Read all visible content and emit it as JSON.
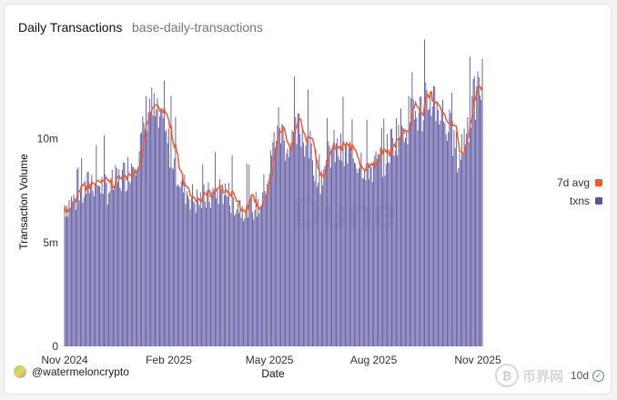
{
  "header": {
    "title": "Daily Transactions",
    "subtitle": "base-daily-transactions"
  },
  "footer": {
    "author": "@watermeloncrypto",
    "refresh": "10d",
    "watermark": "币界网"
  },
  "colors": {
    "bars": "#5b55a0",
    "avg_line": "#ef5a2e",
    "watermark": "#e4e4e4"
  },
  "chart_data": {
    "type": "bar",
    "title": "Daily Transactions",
    "xlabel": "Date",
    "ylabel": "Transaction Volume",
    "ylim": [
      0,
      14500000
    ],
    "yticks": [
      0,
      5000000,
      10000000
    ],
    "ytick_labels": [
      "0",
      "5m",
      "10m"
    ],
    "x_start": "2024-11-01",
    "x_end": "2025-11-05",
    "xtick_labels": [
      "Nov 2024",
      "Feb 2025",
      "May 2025",
      "Aug 2025",
      "Nov 2025"
    ],
    "xtick_dates": [
      "2024-11-01",
      "2025-02-01",
      "2025-05-01",
      "2025-08-01",
      "2025-11-01"
    ],
    "legend": [
      "7d avg",
      "txns"
    ],
    "legend_position": "right",
    "series": [
      {
        "name": "txns",
        "kind": "bar",
        "color": "#5b55a0",
        "keypoints": [
          [
            "2024-11-01",
            6.8
          ],
          [
            "2024-11-15",
            7.2
          ],
          [
            "2024-11-25",
            8.0
          ],
          [
            "2024-12-10",
            7.6
          ],
          [
            "2024-12-25",
            8.3
          ],
          [
            "2025-01-08",
            9.8
          ],
          [
            "2025-01-14",
            11.8
          ],
          [
            "2025-01-25",
            10.5
          ],
          [
            "2025-02-05",
            9.2
          ],
          [
            "2025-02-12",
            7.8
          ],
          [
            "2025-02-25",
            7.0
          ],
          [
            "2025-03-10",
            7.2
          ],
          [
            "2025-03-20",
            7.6
          ],
          [
            "2025-04-01",
            6.9
          ],
          [
            "2025-04-12",
            6.7
          ],
          [
            "2025-04-22",
            6.8
          ],
          [
            "2025-05-01",
            8.5
          ],
          [
            "2025-05-08",
            10.8
          ],
          [
            "2025-05-18",
            9.5
          ],
          [
            "2025-05-28",
            10.5
          ],
          [
            "2025-06-05",
            9.6
          ],
          [
            "2025-06-15",
            8.2
          ],
          [
            "2025-06-25",
            9.5
          ],
          [
            "2025-07-05",
            9.3
          ],
          [
            "2025-07-20",
            9.0
          ],
          [
            "2025-08-01",
            8.6
          ],
          [
            "2025-08-10",
            9.0
          ],
          [
            "2025-08-20",
            10.2
          ],
          [
            "2025-09-01",
            11.0
          ],
          [
            "2025-09-12",
            11.3
          ],
          [
            "2025-09-22",
            12.1
          ],
          [
            "2025-10-01",
            11.2
          ],
          [
            "2025-10-10",
            10.0
          ],
          [
            "2025-10-15",
            9.0
          ],
          [
            "2025-10-25",
            11.2
          ],
          [
            "2025-11-05",
            12.8
          ]
        ],
        "unit": "millions"
      },
      {
        "name": "7d avg",
        "kind": "line",
        "color": "#ef5a2e"
      }
    ],
    "watermark": "Dune"
  }
}
